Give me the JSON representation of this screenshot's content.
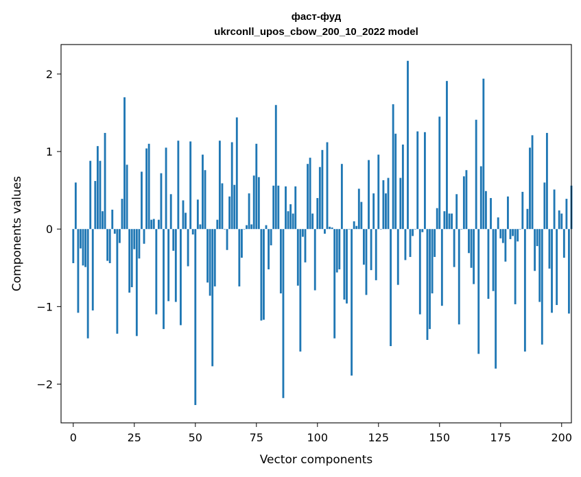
{
  "chart_data": {
    "type": "bar",
    "title": "фаст-фуд",
    "subtitle": "ukrconll_upos_cbow_200_10_2022 model",
    "xlabel": "Vector components",
    "ylabel": "Components values",
    "xlim": [
      -5,
      204
    ],
    "ylim": [
      -2.5,
      2.38
    ],
    "xticks": [
      0,
      25,
      50,
      75,
      100,
      125,
      150,
      175,
      200
    ],
    "xtick_labels": [
      "0",
      "25",
      "50",
      "75",
      "100",
      "125",
      "150",
      "175",
      "200"
    ],
    "yticks": [
      -2,
      -1,
      0,
      1,
      2
    ],
    "ytick_labels": [
      "−2",
      "−1",
      "0",
      "1",
      "2"
    ],
    "bar_color": "#1f77b4",
    "grid": false,
    "values": [
      -0.44,
      0.6,
      -1.08,
      -0.25,
      -0.47,
      -0.49,
      -1.41,
      0.88,
      -1.05,
      0.62,
      1.07,
      0.88,
      0.23,
      1.24,
      -0.41,
      -0.44,
      0.25,
      -0.06,
      -1.35,
      -0.18,
      0.39,
      1.7,
      0.83,
      -0.82,
      -0.75,
      -0.26,
      -1.38,
      -0.38,
      0.74,
      -0.19,
      1.04,
      1.1,
      0.12,
      0.13,
      -1.1,
      0.12,
      0.72,
      -1.29,
      1.05,
      -0.93,
      0.45,
      -0.28,
      -0.94,
      1.14,
      -1.24,
      0.37,
      0.21,
      -0.48,
      1.13,
      -0.07,
      -2.27,
      0.38,
      0.06,
      0.96,
      0.76,
      -0.69,
      -0.86,
      -1.77,
      -0.74,
      0.12,
      1.14,
      0.59,
      0.0,
      -0.27,
      0.42,
      1.12,
      0.57,
      1.44,
      -0.74,
      -0.37,
      0.0,
      0.05,
      0.46,
      0.06,
      0.69,
      1.1,
      0.67,
      -1.18,
      -1.17,
      0.05,
      -0.52,
      -0.21,
      0.56,
      1.6,
      0.56,
      -0.83,
      -2.18,
      0.55,
      0.23,
      0.32,
      0.2,
      0.55,
      -0.73,
      -1.58,
      -0.1,
      -0.43,
      0.84,
      0.92,
      0.2,
      -0.79,
      0.4,
      0.8,
      1.02,
      -0.06,
      1.12,
      0.03,
      0.02,
      -1.41,
      -0.56,
      -0.52,
      0.84,
      -0.91,
      -0.96,
      0.0,
      -1.89,
      0.1,
      0.04,
      0.52,
      0.35,
      -0.46,
      -0.85,
      0.89,
      -0.53,
      0.46,
      -0.66,
      0.96,
      0.0,
      0.63,
      0.46,
      0.66,
      -1.51,
      1.61,
      1.23,
      -0.72,
      0.66,
      1.09,
      -0.4,
      2.17,
      -0.36,
      -0.09,
      0.0,
      1.26,
      -1.1,
      -0.04,
      1.25,
      -1.43,
      -1.29,
      -0.83,
      -0.36,
      0.27,
      1.45,
      -0.99,
      0.23,
      1.91,
      0.2,
      0.2,
      -0.49,
      0.45,
      -1.23,
      0.0,
      0.68,
      0.76,
      -0.31,
      -0.5,
      -0.71,
      1.41,
      -1.61,
      0.81,
      1.94,
      0.49,
      -0.9,
      0.4,
      -0.8,
      -1.8,
      0.15,
      -0.12,
      -0.18,
      -0.42,
      0.42,
      -0.13,
      -0.09,
      -0.97,
      -0.16,
      0.0,
      0.48,
      -1.58,
      0.26,
      1.05,
      1.21,
      -0.54,
      -0.22,
      -0.94,
      -1.49,
      0.6,
      1.24,
      -0.51,
      -1.08,
      0.51,
      -0.98,
      0.24,
      0.2,
      -0.37,
      0.39,
      -1.09,
      0.56
    ]
  }
}
